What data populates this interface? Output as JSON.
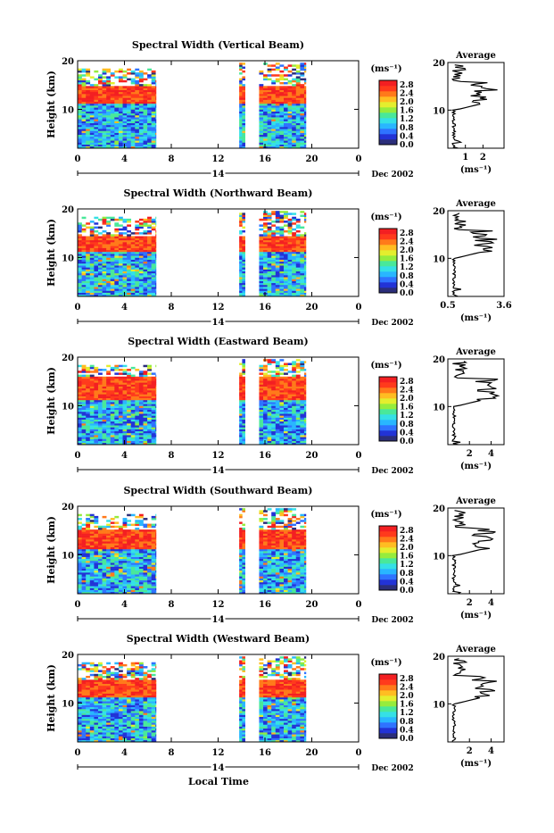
{
  "chart_data": [
    {
      "type": "heatmap",
      "title": "Spectral Width (Vertical Beam)",
      "ylabel": "Height (km)",
      "xticks": [
        "0",
        "4",
        "8",
        "12",
        "16",
        "20",
        "0"
      ],
      "date_label": "14",
      "month_label": "Dec 2002",
      "xlim_hours": [
        0,
        24
      ],
      "ylim": [
        2,
        20
      ],
      "yticks": [
        "10",
        "20"
      ],
      "data_blocks_hours": [
        [
          0,
          6.7
        ],
        [
          13.8,
          14.3
        ],
        [
          15.5,
          19.5
        ]
      ],
      "colorbar": {
        "unit": "(ms⁻¹)",
        "ticks": [
          "2.8",
          "2.4",
          "2.0",
          "1.6",
          "1.2",
          "0.8",
          "0.4",
          "0.0"
        ]
      },
      "average": {
        "title": "Average",
        "xlabel": "(ms⁻¹)",
        "xticks": [
          "1",
          "2"
        ],
        "xlim": [
          0,
          3.2
        ],
        "yticks": [
          "10",
          "20"
        ]
      }
    },
    {
      "type": "heatmap",
      "title": "Spectral Width (Northward Beam)",
      "ylabel": "Height (km)",
      "xticks": [
        "0",
        "4",
        "8",
        "12",
        "16",
        "20",
        "0"
      ],
      "date_label": "14",
      "month_label": "Dec 2002",
      "xlim_hours": [
        0,
        24
      ],
      "ylim": [
        2,
        20
      ],
      "yticks": [
        "10",
        "20"
      ],
      "data_blocks_hours": [
        [
          0,
          6.7
        ],
        [
          13.8,
          14.3
        ],
        [
          15.5,
          19.5
        ]
      ],
      "colorbar": {
        "unit": "(ms⁻¹)",
        "ticks": [
          "2.8",
          "2.4",
          "2.0",
          "1.6",
          "1.2",
          "0.8",
          "0.4",
          "0.0"
        ]
      },
      "average": {
        "title": "Average",
        "xlabel": "(ms⁻¹)",
        "xticks": [
          "0.5",
          "3.6"
        ],
        "xlim": [
          0.5,
          3.6
        ],
        "yticks": [
          "10",
          "20"
        ]
      }
    },
    {
      "type": "heatmap",
      "title": "Spectral Width (Eastward Beam)",
      "ylabel": "Height (km)",
      "xticks": [
        "0",
        "4",
        "8",
        "12",
        "16",
        "20",
        "0"
      ],
      "date_label": "14",
      "month_label": "Dec 2002",
      "xlim_hours": [
        0,
        24
      ],
      "ylim": [
        2,
        20
      ],
      "yticks": [
        "10",
        "20"
      ],
      "data_blocks_hours": [
        [
          0,
          6.7
        ],
        [
          13.8,
          14.3
        ],
        [
          15.5,
          19.5
        ]
      ],
      "colorbar": {
        "unit": "(ms⁻¹)",
        "ticks": [
          "2.8",
          "2.4",
          "2.0",
          "1.6",
          "1.2",
          "0.8",
          "0.4",
          "0.0"
        ]
      },
      "average": {
        "title": "Average",
        "xlabel": "(ms⁻¹)",
        "xticks": [
          "2",
          "4"
        ],
        "xlim": [
          0,
          5.2
        ],
        "yticks": [
          "10",
          "20"
        ]
      }
    },
    {
      "type": "heatmap",
      "title": "Spectral Width (Southward Beam)",
      "ylabel": "Height (km)",
      "xticks": [
        "0",
        "4",
        "8",
        "12",
        "16",
        "20",
        "0"
      ],
      "date_label": "14",
      "month_label": "Dec 2002",
      "xlim_hours": [
        0,
        24
      ],
      "ylim": [
        2,
        20
      ],
      "yticks": [
        "10",
        "20"
      ],
      "data_blocks_hours": [
        [
          0,
          6.7
        ],
        [
          13.8,
          14.3
        ],
        [
          15.5,
          19.5
        ]
      ],
      "colorbar": {
        "unit": "(ms⁻¹)",
        "ticks": [
          "2.8",
          "2.4",
          "2.0",
          "1.6",
          "1.2",
          "0.8",
          "0.4",
          "0.0"
        ]
      },
      "average": {
        "title": "Average",
        "xlabel": "(ms⁻¹)",
        "xticks": [
          "2",
          "4"
        ],
        "xlim": [
          0,
          5.2
        ],
        "yticks": [
          "10",
          "20"
        ]
      }
    },
    {
      "type": "heatmap",
      "title": "Spectral Width (Westward Beam)",
      "ylabel": "Height (km)",
      "xticks": [
        "0",
        "4",
        "8",
        "12",
        "16",
        "20",
        "0"
      ],
      "date_label": "14",
      "month_label": "Dec 2002",
      "xlim_hours": [
        0,
        24
      ],
      "ylim": [
        2,
        20
      ],
      "yticks": [
        "10",
        "20"
      ],
      "data_blocks_hours": [
        [
          0,
          6.7
        ],
        [
          13.8,
          14.3
        ],
        [
          15.5,
          19.5
        ]
      ],
      "colorbar": {
        "unit": "(ms⁻¹)",
        "ticks": [
          "2.8",
          "2.4",
          "2.0",
          "1.6",
          "1.2",
          "0.8",
          "0.4",
          "0.0"
        ]
      },
      "average": {
        "title": "Average",
        "xlabel": "(ms⁻¹)",
        "xticks": [
          "2",
          "4"
        ],
        "xlim": [
          0,
          5.2
        ],
        "yticks": [
          "10",
          "20"
        ]
      }
    }
  ],
  "footer": {
    "xlabel": "Local Time"
  },
  "colorscale": [
    "#2b2e7a",
    "#2233d6",
    "#2f73ff",
    "#29b6ff",
    "#35e0e6",
    "#49e89a",
    "#96ec3d",
    "#e4ee2e",
    "#ffbd22",
    "#ff7a1a",
    "#ff3a1c",
    "#f31f22"
  ]
}
